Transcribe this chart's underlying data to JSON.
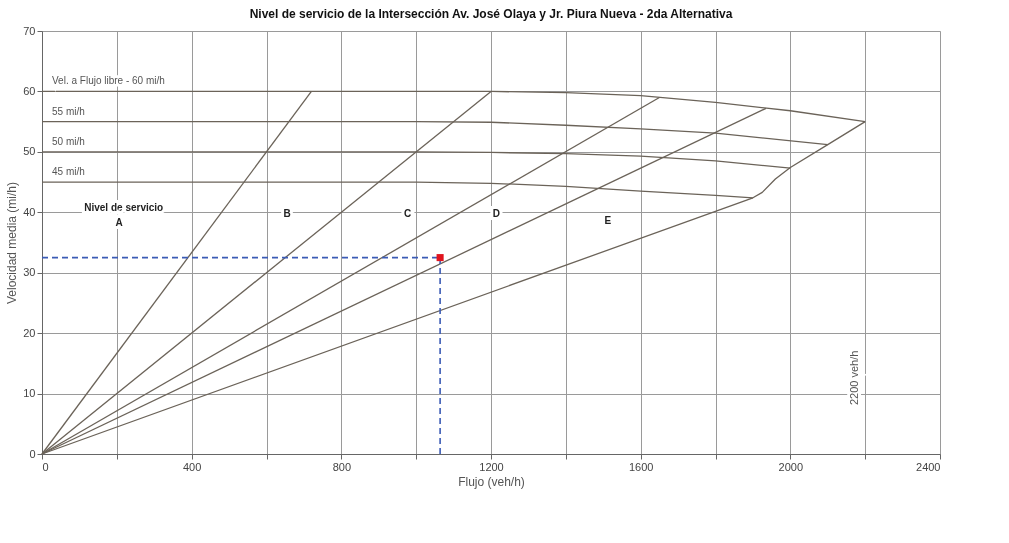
{
  "chart_data": {
    "type": "line",
    "title": "Nivel de servicio de la Intersección  Av. José Olaya y Jr. Piura Nueva - 2da Alternativa",
    "xlabel": "Flujo (veh/h)",
    "ylabel": "Velocidad media (mi/h)",
    "xlim": [
      0,
      2400
    ],
    "ylim": [
      0,
      70
    ],
    "xticks": [
      0,
      {
        "value": 200,
        "label": null
      },
      400,
      {
        "value": 600,
        "label": null
      },
      800,
      {
        "value": 1000,
        "label": null
      },
      1200,
      {
        "value": 1400,
        "label": null
      },
      1600,
      {
        "value": 1800,
        "label": null
      },
      2000,
      {
        "value": 2200,
        "label": null
      },
      2400
    ],
    "yticks": [
      0,
      10,
      20,
      30,
      40,
      50,
      60,
      70
    ],
    "grid": true,
    "marker": "none",
    "line_style": "solid",
    "series": [
      {
        "name": "Vel. a Flujo libre - 60 mi/h",
        "color": "#6b6359",
        "x": [
          0,
          1200,
          1400,
          1600,
          1800,
          2000,
          2200
        ],
        "values": [
          60,
          60,
          59.8,
          59.3,
          58.2,
          56.8,
          55
        ]
      },
      {
        "name": "55 mi/h",
        "color": "#6b6359",
        "x": [
          0,
          1000,
          1200,
          1400,
          1600,
          1800,
          2100
        ],
        "values": [
          55,
          55,
          54.9,
          54.4,
          53.8,
          53.1,
          51.2
        ]
      },
      {
        "name": "50 mi/h",
        "color": "#6b6359",
        "x": [
          0,
          1000,
          1200,
          1400,
          1600,
          1800,
          2000
        ],
        "values": [
          50,
          50,
          49.9,
          49.7,
          49.3,
          48.5,
          47.3
        ]
      },
      {
        "name": "45 mi/h",
        "color": "#6b6359",
        "x": [
          0,
          1000,
          1200,
          1400,
          1600,
          1800,
          1900
        ],
        "values": [
          45,
          45,
          44.8,
          44.3,
          43.5,
          42.8,
          42.4
        ]
      },
      {
        "color": "#6b6359",
        "x": [
          0,
          720
        ],
        "values": [
          0,
          60
        ]
      },
      {
        "color": "#6b6359",
        "x": [
          0,
          1200
        ],
        "values": [
          0,
          60
        ]
      },
      {
        "color": "#6b6359",
        "x": [
          0,
          1650
        ],
        "values": [
          0,
          59
        ]
      },
      {
        "color": "#6b6359",
        "x": [
          0,
          1935
        ],
        "values": [
          0,
          57.2
        ]
      },
      {
        "color": "#6b6359",
        "x": [
          0,
          1900,
          1925,
          1960,
          2000,
          2100,
          2200
        ],
        "values": [
          0,
          42.4,
          43.3,
          45.5,
          47.4,
          51.2,
          55
        ]
      },
      {
        "color": "#3b5bb5",
        "line_style": "dashed",
        "x": [
          0,
          1064
        ],
        "values": [
          32.5,
          32.5
        ]
      },
      {
        "color": "#3b5bb5",
        "line_style": "dashed",
        "x": [
          1064,
          1064
        ],
        "values": [
          0,
          32.5
        ]
      },
      {
        "type": "scatter",
        "marker": "square",
        "color": "#e0141e",
        "x": [
          1064
        ],
        "values": [
          32.5
        ]
      }
    ],
    "annotations": [
      "Nivel de servicio",
      "A",
      "B",
      "C",
      "D",
      "E",
      "2200 veh/h"
    ]
  }
}
